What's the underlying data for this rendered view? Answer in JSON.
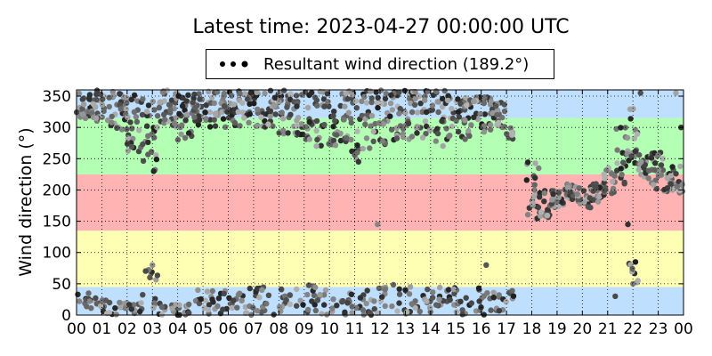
{
  "chart_data": {
    "type": "scatter",
    "title": "Latest time: 2023-04-27 00:00:00 UTC",
    "ylabel": "Wind direction (°)",
    "xlabel": "",
    "legend": {
      "label": "Resultant wind direction (189.2°)",
      "placement": "top-center"
    },
    "x_tick_labels": [
      "00",
      "01",
      "02",
      "03",
      "04",
      "05",
      "06",
      "07",
      "08",
      "09",
      "10",
      "11",
      "12",
      "13",
      "14",
      "15",
      "16",
      "17",
      "18",
      "19",
      "20",
      "21",
      "22",
      "23",
      "00"
    ],
    "xlim": [
      0,
      24
    ],
    "y_ticks": [
      0,
      50,
      100,
      150,
      200,
      250,
      300,
      350
    ],
    "ylim": [
      0,
      360
    ],
    "grid": true,
    "bands": [
      {
        "from": 0,
        "to": 45,
        "color": "#bfdfff"
      },
      {
        "from": 45,
        "to": 135,
        "color": "#ffffb3"
      },
      {
        "from": 135,
        "to": 225,
        "color": "#ffb3b3"
      },
      {
        "from": 225,
        "to": 315,
        "color": "#b3ffb3"
      },
      {
        "from": 315,
        "to": 360,
        "color": "#bfdfff"
      }
    ],
    "segments": [
      {
        "x0": 0.0,
        "x1": 0.6,
        "ranges": [
          [
            310,
            360
          ]
        ],
        "aux": [
          [
            5,
            35
          ]
        ]
      },
      {
        "x0": 0.6,
        "x1": 1.2,
        "ranges": [
          [
            310,
            360
          ]
        ],
        "aux": [
          [
            5,
            35
          ]
        ]
      },
      {
        "x0": 1.2,
        "x1": 2.0,
        "ranges": [
          [
            295,
            360
          ]
        ],
        "aux": [
          [
            0,
            25
          ]
        ]
      },
      {
        "x0": 2.0,
        "x1": 2.6,
        "ranges": [
          [
            260,
            360
          ]
        ],
        "aux": [
          [
            0,
            20
          ]
        ]
      },
      {
        "x0": 2.6,
        "x1": 3.2,
        "ranges": [
          [
            230,
            350
          ]
        ],
        "aux": [
          [
            10,
            80
          ]
        ]
      },
      {
        "x0": 3.2,
        "x1": 4.0,
        "ranges": [
          [
            300,
            360
          ]
        ],
        "aux": [
          [
            0,
            20
          ]
        ]
      },
      {
        "x0": 4.0,
        "x1": 4.6,
        "ranges": [
          [
            280,
            360
          ]
        ],
        "aux": [
          [
            0,
            20
          ]
        ]
      },
      {
        "x0": 4.6,
        "x1": 5.4,
        "ranges": [
          [
            300,
            360
          ]
        ],
        "aux": [
          [
            0,
            40
          ]
        ]
      },
      {
        "x0": 5.4,
        "x1": 6.2,
        "ranges": [
          [
            300,
            360
          ]
        ],
        "aux": [
          [
            0,
            40
          ]
        ]
      },
      {
        "x0": 6.2,
        "x1": 7.0,
        "ranges": [
          [
            300,
            360
          ]
        ],
        "aux": [
          [
            0,
            45
          ]
        ]
      },
      {
        "x0": 7.0,
        "x1": 7.8,
        "ranges": [
          [
            300,
            360
          ]
        ],
        "aux": [
          [
            0,
            45
          ]
        ]
      },
      {
        "x0": 7.8,
        "x1": 8.6,
        "ranges": [
          [
            290,
            360
          ]
        ],
        "aux": [
          [
            0,
            45
          ]
        ]
      },
      {
        "x0": 8.6,
        "x1": 9.4,
        "ranges": [
          [
            280,
            360
          ]
        ],
        "aux": [
          [
            0,
            50
          ]
        ]
      },
      {
        "x0": 9.4,
        "x1": 10.2,
        "ranges": [
          [
            270,
            360
          ]
        ],
        "aux": [
          [
            0,
            45
          ]
        ]
      },
      {
        "x0": 10.2,
        "x1": 11.0,
        "ranges": [
          [
            260,
            360
          ]
        ],
        "aux": [
          [
            0,
            45
          ]
        ]
      },
      {
        "x0": 11.0,
        "x1": 11.6,
        "ranges": [
          [
            240,
            360
          ]
        ],
        "aux": [
          [
            0,
            45
          ]
        ]
      },
      {
        "x0": 11.6,
        "x1": 12.4,
        "ranges": [
          [
            270,
            360
          ]
        ],
        "aux": [
          [
            0,
            45
          ]
        ]
      },
      {
        "x0": 12.4,
        "x1": 13.2,
        "ranges": [
          [
            280,
            360
          ]
        ],
        "aux": [
          [
            0,
            50
          ]
        ]
      },
      {
        "x0": 13.2,
        "x1": 14.0,
        "ranges": [
          [
            280,
            360
          ]
        ],
        "aux": [
          [
            0,
            45
          ]
        ]
      },
      {
        "x0": 14.0,
        "x1": 14.8,
        "ranges": [
          [
            270,
            360
          ]
        ],
        "aux": [
          [
            0,
            45
          ]
        ]
      },
      {
        "x0": 14.8,
        "x1": 15.6,
        "ranges": [
          [
            280,
            350
          ]
        ],
        "aux": [
          [
            0,
            45
          ]
        ]
      },
      {
        "x0": 15.6,
        "x1": 16.4,
        "ranges": [
          [
            290,
            350
          ]
        ],
        "aux": [
          [
            0,
            45
          ]
        ]
      },
      {
        "x0": 16.4,
        "x1": 17.0,
        "ranges": [
          [
            300,
            340
          ]
        ],
        "aux": [
          [
            5,
            40
          ]
        ]
      },
      {
        "x0": 17.0,
        "x1": 17.3,
        "ranges": [
          [
            280,
            300
          ]
        ],
        "aux": [
          [
            20,
            40
          ]
        ]
      },
      {
        "x0": 17.8,
        "x1": 18.3,
        "ranges": [
          [
            150,
            250
          ]
        ],
        "aux": []
      },
      {
        "x0": 18.3,
        "x1": 18.7,
        "ranges": [
          [
            150,
            200
          ]
        ],
        "aux": []
      },
      {
        "x0": 18.7,
        "x1": 19.3,
        "ranges": [
          [
            170,
            200
          ]
        ],
        "aux": []
      },
      {
        "x0": 19.3,
        "x1": 19.8,
        "ranges": [
          [
            185,
            210
          ]
        ],
        "aux": []
      },
      {
        "x0": 19.8,
        "x1": 20.4,
        "ranges": [
          [
            170,
            205
          ]
        ],
        "aux": []
      },
      {
        "x0": 20.4,
        "x1": 20.8,
        "ranges": [
          [
            180,
            215
          ]
        ],
        "aux": []
      },
      {
        "x0": 20.8,
        "x1": 21.3,
        "ranges": [
          [
            190,
            240
          ]
        ],
        "aux": []
      },
      {
        "x0": 21.3,
        "x1": 21.8,
        "ranges": [
          [
            210,
            300
          ]
        ],
        "aux": []
      },
      {
        "x0": 21.8,
        "x1": 22.2,
        "ranges": [
          [
            230,
            330
          ]
        ],
        "aux": [
          [
            50,
            85
          ]
        ]
      },
      {
        "x0": 22.2,
        "x1": 22.6,
        "ranges": [
          [
            220,
            260
          ]
        ],
        "aux": []
      },
      {
        "x0": 22.6,
        "x1": 23.2,
        "ranges": [
          [
            200,
            260
          ]
        ],
        "aux": []
      },
      {
        "x0": 23.2,
        "x1": 24.0,
        "ranges": [
          [
            195,
            240
          ]
        ],
        "aux": []
      }
    ],
    "extra_points": [
      [
        1.7,
        20
      ],
      [
        2.9,
        60
      ],
      [
        3.0,
        80
      ],
      [
        11.9,
        145
      ],
      [
        13.2,
        45
      ],
      [
        21.3,
        30
      ],
      [
        21.8,
        145
      ],
      [
        22.0,
        50
      ],
      [
        22.1,
        85
      ],
      [
        22.2,
        55
      ],
      [
        16.2,
        80
      ],
      [
        3.05,
        230
      ],
      [
        18.1,
        200
      ],
      [
        11.15,
        245
      ],
      [
        11.1,
        260
      ],
      [
        4.6,
        340
      ],
      [
        23.7,
        355
      ],
      [
        23.9,
        300
      ],
      [
        22.3,
        355
      ]
    ]
  },
  "colors": {
    "axis": "#000000",
    "grid": "#000000",
    "point_dark": "#1f1f1f",
    "point_light": "#b0b0b0"
  }
}
